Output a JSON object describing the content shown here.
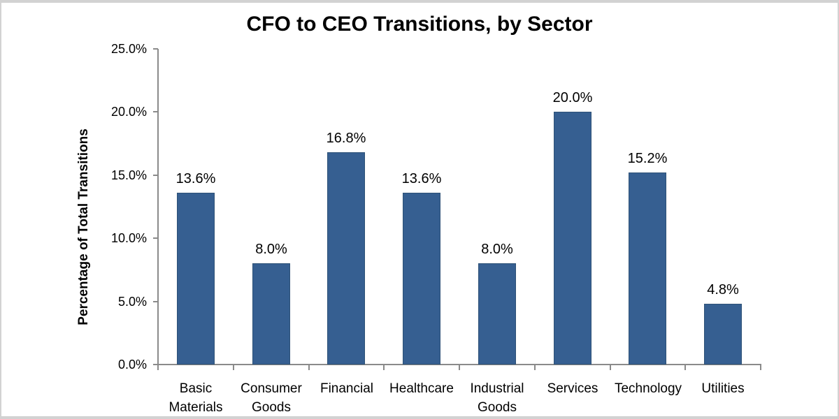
{
  "window": {
    "background_color": "#ffffff",
    "frame_color": "#d2d2d2"
  },
  "chart_data": {
    "type": "bar",
    "title": "CFO to CEO Transitions, by Sector",
    "xlabel": "",
    "ylabel": "Percentage of Total Transitions",
    "categories": [
      "Basic Materials",
      "Consumer Goods",
      "Financial",
      "Healthcare",
      "Industrial Goods",
      "Services",
      "Technology",
      "Utilities"
    ],
    "values": [
      13.6,
      8.0,
      16.8,
      13.6,
      8.0,
      20.0,
      15.2,
      4.8
    ],
    "value_labels": [
      "13.6%",
      "8.0%",
      "16.8%",
      "13.6%",
      "8.0%",
      "20.0%",
      "15.2%",
      "4.8%"
    ],
    "ylim": [
      0,
      25
    ],
    "ytick_values": [
      0,
      5,
      10,
      15,
      20,
      25
    ],
    "ytick_labels": [
      "0.0%",
      "5.0%",
      "10.0%",
      "15.0%",
      "20.0%",
      "25.0%"
    ],
    "grid": false,
    "legend": "none",
    "bar_color": "#365F91",
    "bar_border_color": "#2E5277",
    "axis_color": "#8a8a8a",
    "text_color": "#000000"
  }
}
